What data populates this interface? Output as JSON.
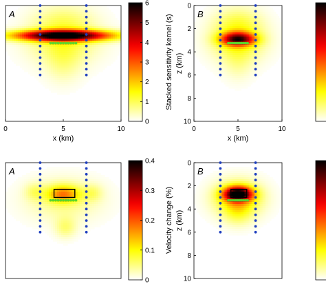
{
  "chart_data": [
    {
      "type": "heatmap",
      "panel_label": "A",
      "xlabel": "x (km)",
      "ylabel": "",
      "xlim": [
        0,
        10
      ],
      "ylim": [
        0,
        10
      ],
      "xticks": [
        0,
        5,
        10
      ],
      "yticks": [],
      "colorbar": {
        "label": "Stacked sensitivity kernel (s)",
        "range": [
          0,
          6
        ],
        "ticks": [
          0,
          1,
          2,
          3,
          4,
          5,
          6
        ],
        "colormap": "hot-reversed"
      },
      "blobs": [
        {
          "cx": 5,
          "cz": 2.6,
          "rx": 4.2,
          "rz": 0.45,
          "amp": 6.0
        },
        {
          "cx": 5,
          "cz": 3.0,
          "rx": 3.0,
          "rz": 2.0,
          "amp": 1.1
        },
        {
          "cx": 5,
          "cz": 5.0,
          "rx": 1.5,
          "rz": 1.8,
          "amp": 0.5
        },
        {
          "cx": 5,
          "cz": 1.2,
          "rx": 2.5,
          "rz": 1.4,
          "amp": 0.5
        }
      ],
      "receivers_left": {
        "x": 3,
        "z_from": 0,
        "z_to": 6,
        "count": 13,
        "color": "#1f3fbf"
      },
      "receivers_right": {
        "x": 7,
        "z_from": 0,
        "z_to": 6,
        "count": 13,
        "color": "#1f3fbf"
      },
      "sources": {
        "z": 3.25,
        "x_from": 3.9,
        "x_to": 6.1,
        "count": 11,
        "color": "#5bd62c"
      },
      "target_box": null
    },
    {
      "type": "heatmap",
      "panel_label": "B",
      "xlabel": "x (km)",
      "ylabel": "z (km)",
      "xlim": [
        0,
        10
      ],
      "ylim": [
        0,
        10
      ],
      "xticks": [
        0,
        5,
        10
      ],
      "yticks": [
        0,
        2,
        4,
        6,
        8,
        10
      ],
      "colorbar": {
        "label": "",
        "range": [
          0,
          6
        ],
        "ticks": [],
        "colormap": "hot-reversed"
      },
      "blobs": [
        {
          "cx": 5,
          "cz": 2.9,
          "rx": 1.9,
          "rz": 0.55,
          "amp": 4.4
        },
        {
          "cx": 5,
          "cz": 3.0,
          "rx": 3.0,
          "rz": 1.8,
          "amp": 1.4
        },
        {
          "cx": 5,
          "cz": 1.3,
          "rx": 2.6,
          "rz": 1.3,
          "amp": 0.6
        },
        {
          "cx": 5,
          "cz": 5.0,
          "rx": 1.6,
          "rz": 1.6,
          "amp": 0.4
        }
      ],
      "receivers_left": {
        "x": 3,
        "z_from": 0,
        "z_to": 6,
        "count": 13,
        "color": "#1f3fbf"
      },
      "receivers_right": {
        "x": 7,
        "z_from": 0,
        "z_to": 6,
        "count": 13,
        "color": "#1f3fbf"
      },
      "sources": {
        "z": 3.25,
        "x_from": 3.9,
        "x_to": 6.1,
        "count": 11,
        "color": "#5bd62c"
      },
      "target_box": null
    },
    {
      "type": "heatmap",
      "panel_label": "A",
      "xlabel": "",
      "ylabel": "",
      "xlim": [
        0,
        10
      ],
      "ylim": [
        0,
        10
      ],
      "xticks": [],
      "yticks": [],
      "colorbar": {
        "label": "Velocity change (%)",
        "range": [
          0,
          0.4
        ],
        "ticks": [
          0,
          0.1,
          0.2,
          0.3,
          0.4
        ],
        "colormap": "hot-reversed"
      },
      "blobs": [
        {
          "cx": 5,
          "cz": 2.7,
          "rx": 1.4,
          "rz": 0.7,
          "amp": 0.14
        },
        {
          "cx": 5,
          "cz": 3.2,
          "rx": 3.2,
          "rz": 1.8,
          "amp": 0.05
        },
        {
          "cx": 5.2,
          "cz": 5.6,
          "rx": 0.9,
          "rz": 0.9,
          "amp": 0.05
        },
        {
          "cx": 2.5,
          "cz": 2.5,
          "rx": 0.8,
          "rz": 0.7,
          "amp": 0.04
        },
        {
          "cx": 7.6,
          "cz": 2.6,
          "rx": 0.8,
          "rz": 0.7,
          "amp": 0.04
        }
      ],
      "receivers_left": {
        "x": 3,
        "z_from": 0,
        "z_to": 6,
        "count": 13,
        "color": "#1f3fbf"
      },
      "receivers_right": {
        "x": 7,
        "z_from": 0,
        "z_to": 6,
        "count": 13,
        "color": "#1f3fbf"
      },
      "sources": {
        "z": 3.25,
        "x_from": 3.9,
        "x_to": 6.1,
        "count": 11,
        "color": "#5bd62c"
      },
      "target_box": {
        "x0": 4.2,
        "x1": 6.0,
        "z0": 2.3,
        "z1": 3.0
      }
    },
    {
      "type": "heatmap",
      "panel_label": "B",
      "xlabel": "",
      "ylabel": "z (km)",
      "xlim": [
        0,
        10
      ],
      "ylim": [
        0,
        10
      ],
      "xticks": [],
      "yticks": [
        0,
        2,
        4,
        6,
        8,
        10
      ],
      "colorbar": {
        "label": "",
        "range": [
          0,
          0.4
        ],
        "ticks": [],
        "colormap": "hot-reversed"
      },
      "blobs": [
        {
          "cx": 5,
          "cz": 2.7,
          "rx": 1.6,
          "rz": 0.6,
          "amp": 0.36
        },
        {
          "cx": 5,
          "cz": 3.1,
          "rx": 2.7,
          "rz": 1.5,
          "amp": 0.12
        },
        {
          "cx": 5,
          "cz": 4.2,
          "rx": 1.6,
          "rz": 1.2,
          "amp": 0.05
        }
      ],
      "receivers_left": {
        "x": 3,
        "z_from": 0,
        "z_to": 6,
        "count": 13,
        "color": "#1f3fbf"
      },
      "receivers_right": {
        "x": 7,
        "z_from": 0,
        "z_to": 6,
        "count": 13,
        "color": "#1f3fbf"
      },
      "sources": {
        "z": 3.25,
        "x_from": 3.9,
        "x_to": 6.1,
        "count": 11,
        "color": "#5bd62c"
      },
      "target_box": {
        "x0": 4.2,
        "x1": 6.0,
        "z0": 2.3,
        "z1": 3.0
      }
    }
  ]
}
